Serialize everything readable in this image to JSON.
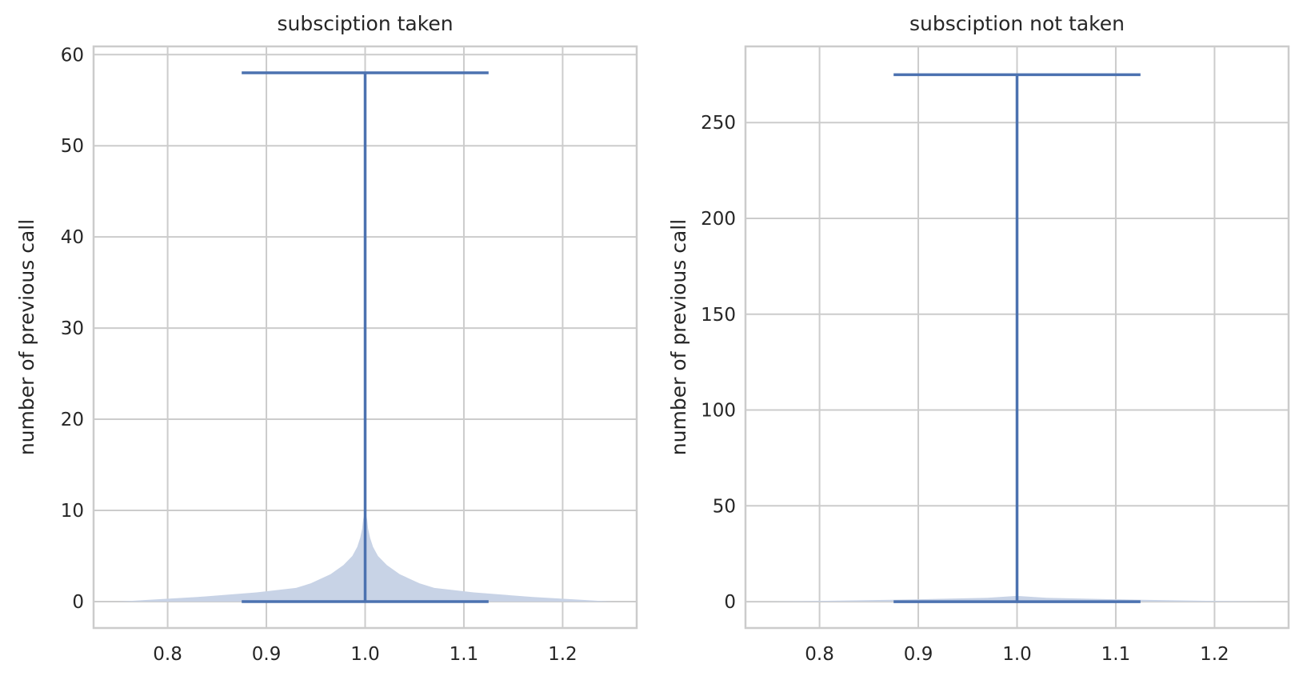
{
  "chart_data": [
    {
      "type": "violin",
      "title": "subsciption taken",
      "xlabel": "",
      "ylabel": "number of previous call",
      "position": 1.0,
      "xlim": [
        0.725,
        1.275
      ],
      "ylim": [
        -2.9,
        60.9
      ],
      "xticks": [
        0.8,
        0.9,
        1.0,
        1.1,
        1.2
      ],
      "xtick_labels": [
        "0.8",
        "0.9",
        "1.0",
        "1.1",
        "1.2"
      ],
      "yticks": [
        0,
        10,
        20,
        30,
        40,
        50,
        60
      ],
      "ytick_labels": [
        "0",
        "10",
        "20",
        "30",
        "40",
        "50",
        "60"
      ],
      "min": 0,
      "max": 58,
      "density_profile": [
        {
          "y": 0,
          "half_width": 0.25
        },
        {
          "y": 0.5,
          "half_width": 0.17
        },
        {
          "y": 1,
          "half_width": 0.11
        },
        {
          "y": 1.5,
          "half_width": 0.07
        },
        {
          "y": 2,
          "half_width": 0.055
        },
        {
          "y": 3,
          "half_width": 0.035
        },
        {
          "y": 4,
          "half_width": 0.022
        },
        {
          "y": 5,
          "half_width": 0.013
        },
        {
          "y": 6,
          "half_width": 0.008
        },
        {
          "y": 7,
          "half_width": 0.005
        },
        {
          "y": 8,
          "half_width": 0.003
        },
        {
          "y": 9,
          "half_width": 0.002
        },
        {
          "y": 10,
          "half_width": 0.0
        }
      ],
      "colors": {
        "lines": "#4c72b0",
        "body": "#c8d3e6"
      },
      "grid": true
    },
    {
      "type": "violin",
      "title": "subsciption not taken",
      "xlabel": "",
      "ylabel": "number of previous call",
      "position": 1.0,
      "xlim": [
        0.725,
        1.275
      ],
      "ylim": [
        -13.75,
        289.75
      ],
      "xticks": [
        0.8,
        0.9,
        1.0,
        1.1,
        1.2
      ],
      "xtick_labels": [
        "0.8",
        "0.9",
        "1.0",
        "1.1",
        "1.2"
      ],
      "yticks": [
        0,
        50,
        100,
        150,
        200,
        250
      ],
      "ytick_labels": [
        "0",
        "50",
        "100",
        "150",
        "200",
        "250"
      ],
      "min": 0,
      "max": 275,
      "density_profile": [
        {
          "y": 0,
          "half_width": 0.25
        },
        {
          "y": 1,
          "half_width": 0.12
        },
        {
          "y": 2,
          "half_width": 0.03
        },
        {
          "y": 3,
          "half_width": 0.0
        }
      ],
      "colors": {
        "lines": "#4c72b0",
        "body": "#c8d3e6"
      },
      "grid": true
    }
  ]
}
